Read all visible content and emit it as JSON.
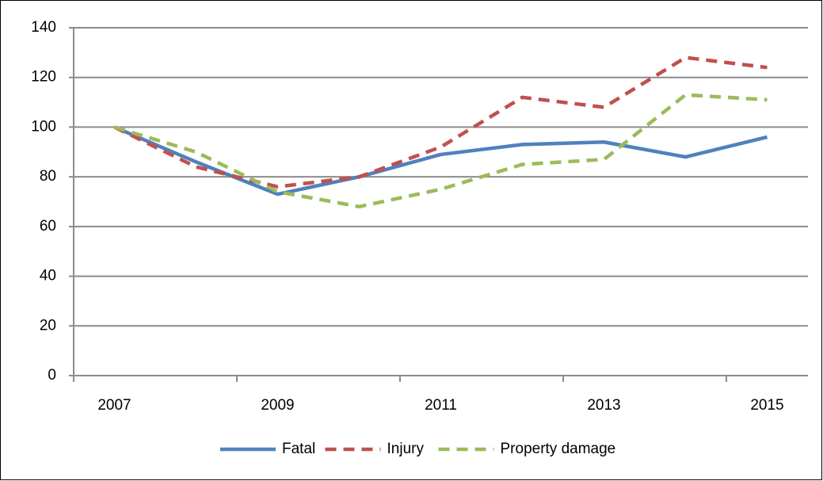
{
  "chart_data": {
    "type": "line",
    "categories": [
      "2007",
      null,
      "2009",
      null,
      "2011",
      null,
      "2013",
      null,
      "2015"
    ],
    "series": [
      {
        "name": "Fatal",
        "color": "#4f81bd",
        "dash": false,
        "values": [
          100,
          86,
          73,
          80,
          89,
          93,
          94,
          88,
          96
        ]
      },
      {
        "name": "Injury",
        "color": "#c0504d",
        "dash": true,
        "values": [
          100,
          84,
          76,
          80,
          92,
          112,
          108,
          128,
          124
        ]
      },
      {
        "name": "Property damage",
        "color": "#9bbb59",
        "dash": true,
        "values": [
          100,
          90,
          74,
          68,
          75,
          85,
          87,
          113,
          111
        ]
      }
    ],
    "ylim": [
      0,
      140
    ],
    "yticks": [
      0,
      20,
      40,
      60,
      80,
      100,
      120,
      140
    ],
    "grid": true,
    "legend": "bottom"
  }
}
